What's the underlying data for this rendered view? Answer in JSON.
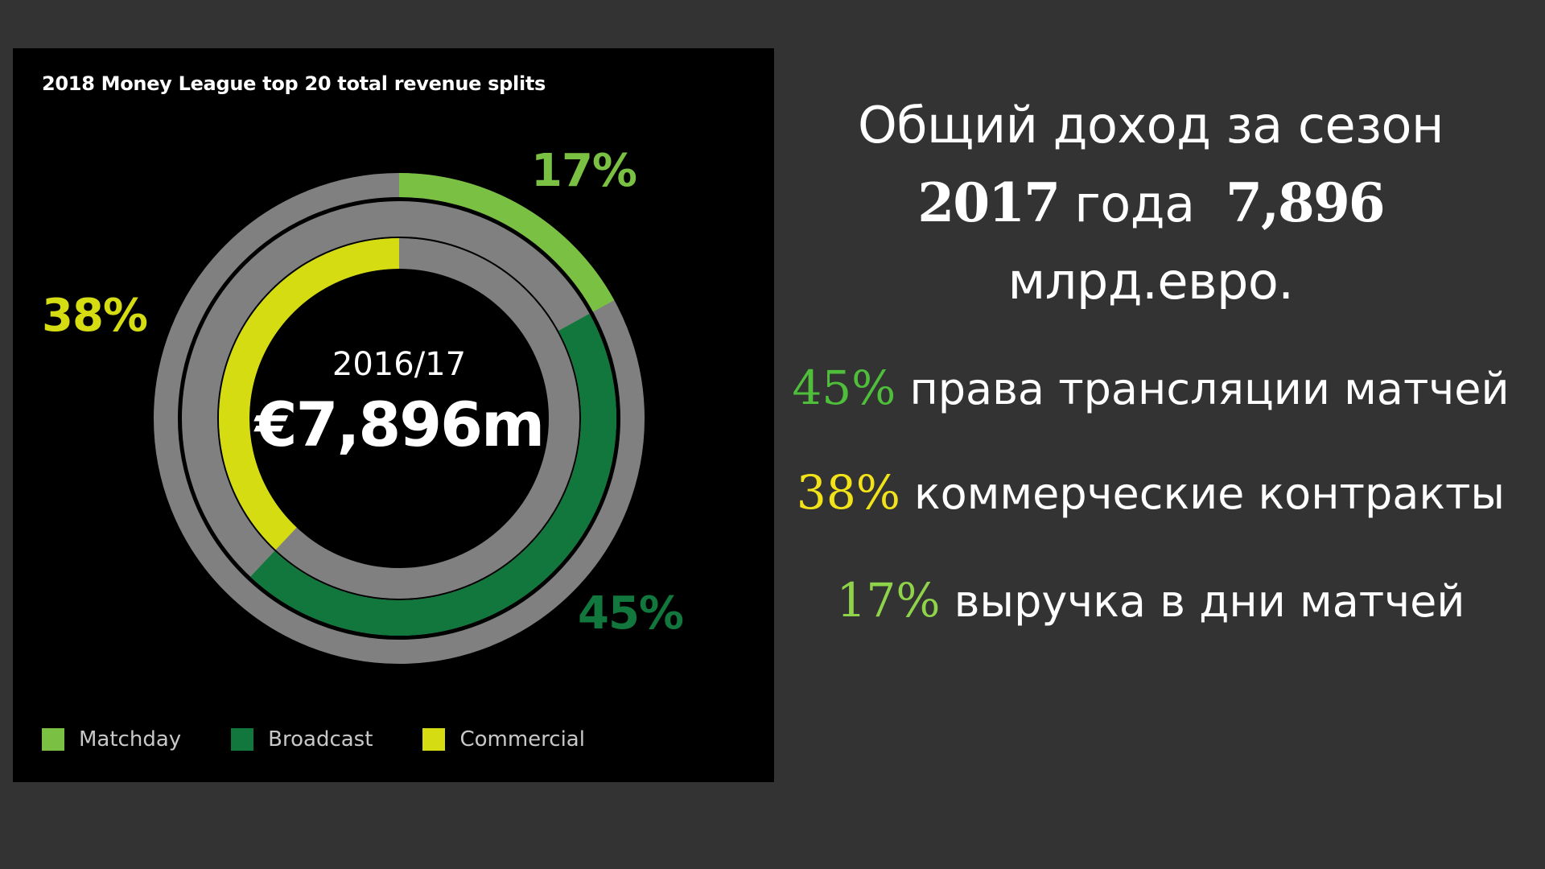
{
  "chart_data": {
    "type": "donut",
    "title": "2018 Money League top 20 total revenue splits",
    "center": {
      "season": "2016/17",
      "total": "€7,896m"
    },
    "series": [
      {
        "name": "Matchday",
        "value": 17,
        "label": "17%",
        "color": "#7ac143"
      },
      {
        "name": "Broadcast",
        "value": 45,
        "label": "45%",
        "color": "#12773d"
      },
      {
        "name": "Commercial",
        "value": 38,
        "label": "38%",
        "color": "#d5dc11"
      }
    ],
    "track_color": "#808080",
    "legend_position": "bottom"
  },
  "headline": {
    "line1": "Общий доход за сезон",
    "year": "2017",
    "word_year": "года",
    "amount": "7,896",
    "unit": "млрд.евро."
  },
  "splits": [
    {
      "pct": "45%",
      "text": "права трансляции матчей",
      "color": "#4fbf3b"
    },
    {
      "pct": "38%",
      "text": "коммерческие контракты",
      "color": "#f2e21a"
    },
    {
      "pct": "17%",
      "text": "выручка в дни матчей",
      "color": "#8fd34a"
    }
  ]
}
